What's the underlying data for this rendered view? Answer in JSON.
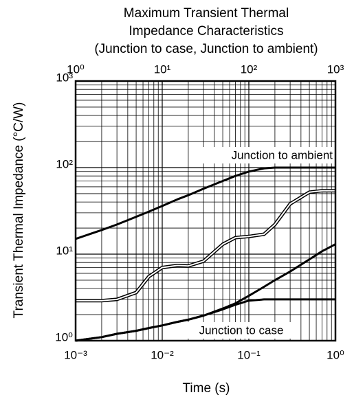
{
  "chart_data": {
    "type": "line",
    "title": [
      "Maximum Transient Thermal",
      "Impedance Characteristics",
      "(Junction to case, Junction to ambient)"
    ],
    "xlabel": "Time  (s)",
    "ylabel": "Transient Thermal Impedance  (°C/W)",
    "log_x": true,
    "log_y": true,
    "grid": true,
    "minor_grid": true,
    "xlim": [
      0.001,
      1
    ],
    "xticks": [
      {
        "value": 0.001,
        "label": "10⁻³"
      },
      {
        "value": 0.01,
        "label": "10⁻²"
      },
      {
        "value": 0.1,
        "label": "10⁻¹"
      },
      {
        "value": 1,
        "label": "10⁰"
      }
    ],
    "x2lim": [
      1,
      1000
    ],
    "x2ticks": [
      {
        "value": 1,
        "label": "10⁰"
      },
      {
        "value": 10,
        "label": "10¹"
      },
      {
        "value": 100,
        "label": "10²"
      },
      {
        "value": 1000,
        "label": "10³"
      }
    ],
    "ylim": [
      1,
      1000
    ],
    "yticks": [
      {
        "value": 1,
        "label": "10⁰"
      },
      {
        "value": 10,
        "label": "10¹"
      },
      {
        "value": 100,
        "label": "10²"
      },
      {
        "value": 1000,
        "label": "10³"
      }
    ],
    "annotations": [
      "Junction to ambient",
      "Junction to case"
    ],
    "x": [
      0.001,
      0.002,
      0.003,
      0.005,
      0.007,
      0.01,
      0.015,
      0.02,
      0.03,
      0.05,
      0.07,
      0.1,
      0.15,
      0.2,
      0.3,
      0.5,
      0.7,
      1
    ],
    "series": [
      {
        "color": "#000000",
        "values": [
          15,
          19,
          22,
          27,
          31,
          36,
          43,
          48,
          57,
          70,
          80,
          90,
          98,
          100,
          100,
          100,
          100,
          100
        ]
      },
      {
        "color": "#ffffff",
        "values": [
          2.9,
          2.9,
          3.0,
          3.6,
          5.5,
          7.0,
          7.4,
          7.3,
          8.3,
          13,
          15.5,
          16,
          17,
          22,
          38,
          52,
          54,
          54
        ]
      },
      {
        "color": "#000000",
        "values": [
          1.0,
          1.1,
          1.2,
          1.3,
          1.4,
          1.5,
          1.65,
          1.75,
          1.95,
          2.3,
          2.6,
          2.9,
          3.0,
          3.0,
          3.0,
          3.0,
          3.0,
          3.0
        ]
      },
      {
        "color": "#000000",
        "values": [
          1.0,
          1.1,
          1.2,
          1.3,
          1.4,
          1.5,
          1.65,
          1.75,
          1.95,
          2.35,
          2.7,
          3.3,
          4.2,
          5.0,
          6.3,
          8.7,
          10.8,
          13
        ]
      }
    ]
  }
}
